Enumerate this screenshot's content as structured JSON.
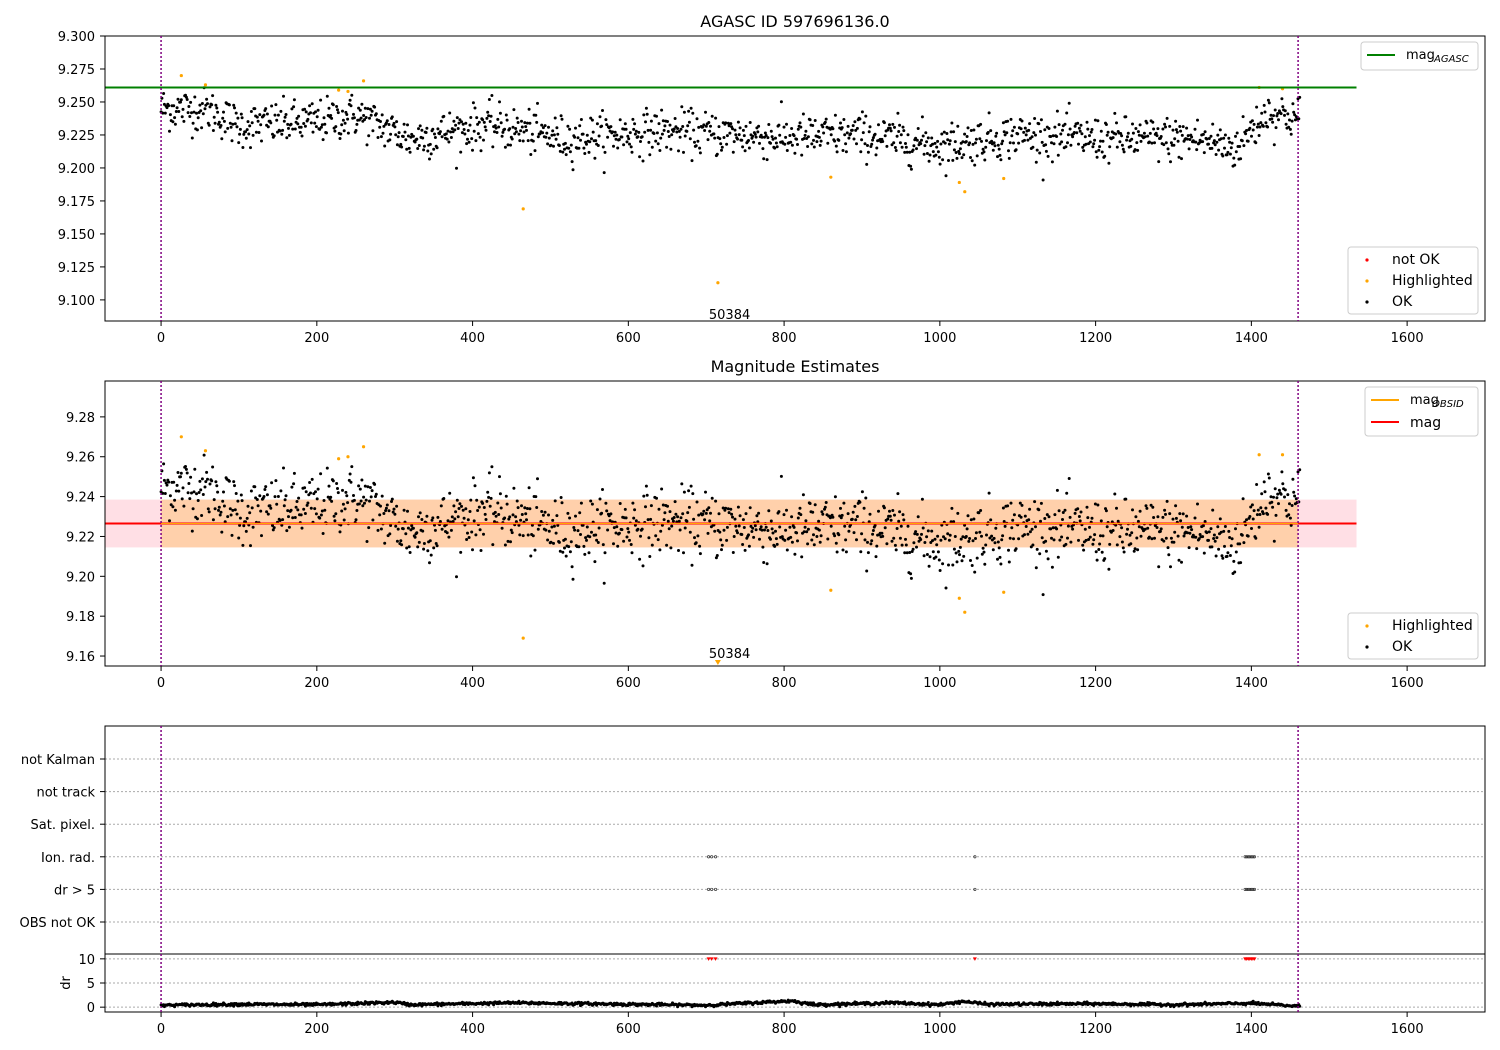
{
  "chart_data": [
    {
      "type": "scatter",
      "title": "AGASC ID 597696136.0",
      "xlim": [
        -72,
        1700
      ],
      "ylim": [
        9.084,
        9.3
      ],
      "xticks": [
        "0",
        "200",
        "400",
        "600",
        "800",
        "1000",
        "1200",
        "1400",
        "1600"
      ],
      "yticks": [
        "9.100",
        "9.125",
        "9.150",
        "9.175",
        "9.200",
        "9.225",
        "9.250",
        "9.275",
        "9.300"
      ],
      "vlines": [
        0,
        1460
      ],
      "hline": {
        "label": "mag",
        "label_sub": "AGASC",
        "y": 9.261,
        "x_end": 1535,
        "color": "#008000"
      },
      "annotation": {
        "text": "50384",
        "x": 730,
        "y": 9.093
      },
      "legend_lines": [
        {
          "label": "mag",
          "sub": "AGASC",
          "color": "#008000"
        }
      ],
      "legend_points": [
        {
          "label": "not OK",
          "color": "#ff0000"
        },
        {
          "label": "Highlighted",
          "color": "#ffa500"
        },
        {
          "label": "OK",
          "color": "#000000"
        }
      ],
      "highlighted_points": [
        [
          26,
          9.27
        ],
        [
          57,
          9.263
        ],
        [
          228,
          9.259
        ],
        [
          240,
          9.258
        ],
        [
          260,
          9.266
        ],
        [
          465,
          9.169
        ],
        [
          715,
          9.113
        ],
        [
          860,
          9.193
        ],
        [
          1025,
          9.189
        ],
        [
          1032,
          9.182
        ],
        [
          1082,
          9.192
        ],
        [
          1410,
          9.261
        ],
        [
          1440,
          9.26
        ]
      ],
      "ok_series": {
        "x_start": 0,
        "x_end": 1462,
        "count": 1350,
        "trend": [
          [
            0,
            9.245
          ],
          [
            60,
            9.244
          ],
          [
            100,
            9.232
          ],
          [
            200,
            9.235
          ],
          [
            250,
            9.24
          ],
          [
            270,
            9.235
          ],
          [
            320,
            9.222
          ],
          [
            420,
            9.233
          ],
          [
            520,
            9.222
          ],
          [
            640,
            9.228
          ],
          [
            800,
            9.223
          ],
          [
            900,
            9.225
          ],
          [
            1000,
            9.217
          ],
          [
            1100,
            9.225
          ],
          [
            1200,
            9.222
          ],
          [
            1330,
            9.222
          ],
          [
            1380,
            9.215
          ],
          [
            1420,
            9.242
          ],
          [
            1462,
            9.238
          ]
        ],
        "spread": 0.011
      }
    },
    {
      "type": "scatter",
      "title": "Magnitude Estimates",
      "xlim": [
        -72,
        1700
      ],
      "ylim": [
        9.155,
        9.298
      ],
      "xticks": [
        "0",
        "200",
        "400",
        "600",
        "800",
        "1000",
        "1200",
        "1400",
        "1600"
      ],
      "yticks": [
        "9.16",
        "9.18",
        "9.20",
        "9.22",
        "9.24",
        "9.26",
        "9.28"
      ],
      "vlines": [
        0,
        1460
      ],
      "mag_line": {
        "y": 9.2265,
        "x_start": -72,
        "x_end": 1535,
        "color": "#ff0000"
      },
      "mag_band": {
        "y_low": 9.2145,
        "y_high": 9.2385,
        "x_start": -72,
        "x_end": 1535,
        "color": "#ffc0cb"
      },
      "obsid_line": {
        "y": 9.2265,
        "x_start": 0,
        "x_end": 1460,
        "color": "#ffa500"
      },
      "obsid_band": {
        "y_low": 9.2145,
        "y_high": 9.2385,
        "x_start": 0,
        "x_end": 1460,
        "color": "#ffa500"
      },
      "annotation": {
        "text": "50384",
        "x": 730,
        "y": 9.16
      },
      "marker_at": {
        "x": 715,
        "y": 9.157
      },
      "legend_lines": [
        {
          "label": "mag",
          "sub": "OBSID",
          "color": "#ffa500"
        },
        {
          "label": "mag",
          "sub": "",
          "color": "#ff0000"
        }
      ],
      "legend_points": [
        {
          "label": "Highlighted",
          "color": "#ffa500"
        },
        {
          "label": "OK",
          "color": "#000000"
        }
      ],
      "highlighted_points": [
        [
          26,
          9.27
        ],
        [
          57,
          9.263
        ],
        [
          228,
          9.259
        ],
        [
          240,
          9.26
        ],
        [
          260,
          9.265
        ],
        [
          465,
          9.169
        ],
        [
          860,
          9.193
        ],
        [
          1025,
          9.189
        ],
        [
          1032,
          9.182
        ],
        [
          1082,
          9.192
        ],
        [
          1410,
          9.261
        ],
        [
          1440,
          9.261
        ]
      ]
    },
    {
      "type": "scatter",
      "title": "",
      "xlim": [
        -72,
        1700
      ],
      "xticks": [
        "0",
        "200",
        "400",
        "600",
        "800",
        "1000",
        "1200",
        "1400",
        "1600"
      ],
      "vlines": [
        0,
        1460
      ],
      "category_rows": [
        "not Kalman",
        "not track",
        "Sat. pixel.",
        "Ion. rad.",
        "dr > 5",
        "OBS not OK"
      ],
      "flag_points": {
        "Ion. rad.": [
          703,
          707,
          712,
          1045,
          1392,
          1394,
          1396,
          1398,
          1400,
          1402,
          1404
        ],
        "dr > 5": [
          703,
          707,
          712,
          1045,
          1392,
          1394,
          1396,
          1398,
          1400,
          1402,
          1404
        ]
      },
      "dr_panel": {
        "ylabel": "dr",
        "yticks": [
          "0",
          "5",
          "10"
        ],
        "ylim": [
          -1,
          11
        ],
        "threshold": 10,
        "red_points": [
          703,
          707,
          712,
          1045,
          1392,
          1394,
          1396,
          1398,
          1400,
          1402,
          1404
        ],
        "trend": [
          [
            0,
            0.4
          ],
          [
            100,
            0.6
          ],
          [
            200,
            0.5
          ],
          [
            300,
            1.0
          ],
          [
            320,
            0.5
          ],
          [
            450,
            0.9
          ],
          [
            600,
            0.6
          ],
          [
            700,
            0.4
          ],
          [
            810,
            1.3
          ],
          [
            840,
            0.5
          ],
          [
            940,
            0.9
          ],
          [
            1000,
            0.5
          ],
          [
            1030,
            1.2
          ],
          [
            1060,
            0.6
          ],
          [
            1200,
            0.7
          ],
          [
            1300,
            0.5
          ],
          [
            1400,
            0.8
          ],
          [
            1460,
            0.2
          ]
        ]
      }
    }
  ]
}
